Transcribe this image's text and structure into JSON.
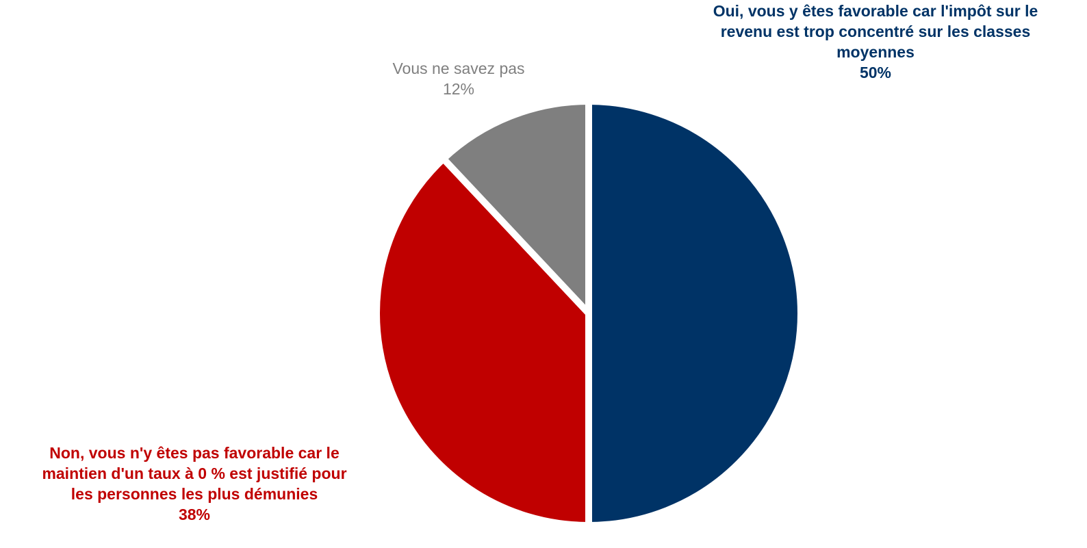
{
  "chart_data": {
    "type": "pie",
    "slices": [
      {
        "name": "Oui, vous y êtes favorable car l'impôt sur le revenu est trop concentré sur les classes moyennes",
        "lines": [
          "Oui, vous y êtes favorable car l'impôt sur le",
          "revenu est trop concentré sur les classes",
          "moyennes"
        ],
        "value": 50,
        "value_label": "50%",
        "color": "#003366"
      },
      {
        "name": "Non, vous n'y êtes pas favorable car le maintien d'un taux à 0 % est justifié pour les personnes les plus démunies",
        "lines": [
          "Non, vous n'y êtes pas favorable car le",
          "maintien d'un taux à 0 % est justifié pour",
          "les personnes les plus démunies"
        ],
        "value": 38,
        "value_label": "38%",
        "color": "#C00000"
      },
      {
        "name": "Vous ne savez pas",
        "lines": [
          "Vous ne savez pas"
        ],
        "value": 12,
        "value_label": "12%",
        "color": "#7F7F7F",
        "label_color": "#7F7F7F"
      }
    ],
    "start_angle_deg": 0,
    "direction": "clockwise",
    "legend": "none"
  }
}
